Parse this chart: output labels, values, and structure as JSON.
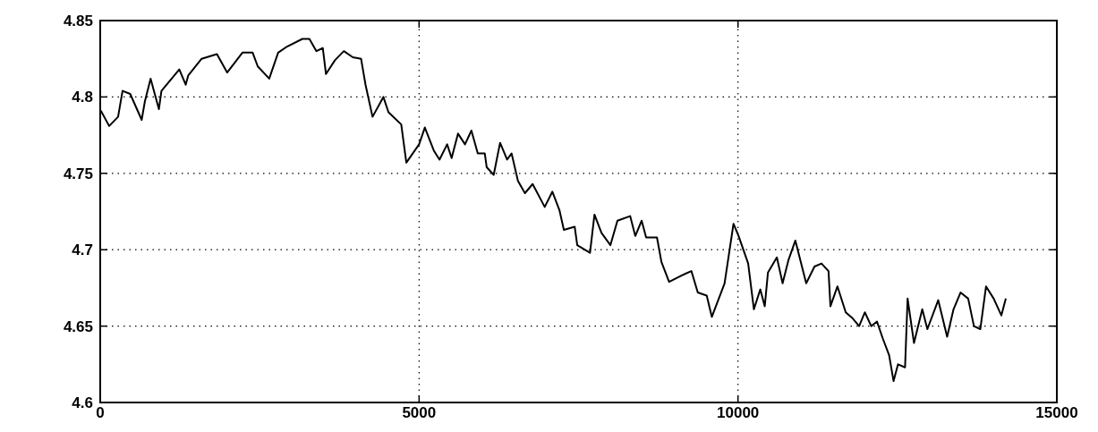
{
  "chart_data": {
    "type": "line",
    "xlim": [
      0,
      15000
    ],
    "ylim": [
      4.6,
      4.85
    ],
    "xticks": [
      0,
      5000,
      10000,
      15000
    ],
    "yticks": [
      4.6,
      4.65,
      4.7,
      4.75,
      4.8,
      4.85
    ],
    "grid": true,
    "line_style": "solid",
    "series": [
      {
        "color": "#000000",
        "x": [
          10,
          140,
          280,
          350,
          470,
          650,
          700,
          790,
          920,
          960,
          1240,
          1340,
          1380,
          1590,
          1830,
          1990,
          2230,
          2390,
          2470,
          2650,
          2790,
          2930,
          3170,
          3280,
          3390,
          3490,
          3540,
          3680,
          3820,
          3960,
          4090,
          4160,
          4270,
          4440,
          4520,
          4720,
          4800,
          5000,
          5090,
          5230,
          5320,
          5440,
          5510,
          5610,
          5720,
          5820,
          5920,
          6030,
          6060,
          6170,
          6270,
          6380,
          6450,
          6550,
          6660,
          6780,
          6970,
          7090,
          7200,
          7270,
          7440,
          7480,
          7680,
          7750,
          7860,
          8000,
          8110,
          8310,
          8390,
          8490,
          8560,
          8730,
          8800,
          8920,
          9160,
          9270,
          9370,
          9510,
          9590,
          9790,
          9930,
          10010,
          10160,
          10250,
          10350,
          10420,
          10470,
          10610,
          10700,
          10790,
          10900,
          11070,
          11200,
          11310,
          11420,
          11450,
          11560,
          11690,
          11800,
          11900,
          11990,
          12090,
          12180,
          12270,
          12370,
          12440,
          12510,
          12620,
          12660,
          12760,
          12890,
          12970,
          13140,
          13280,
          13380,
          13490,
          13610,
          13700,
          13800,
          13890,
          14010,
          14130,
          14200
        ],
        "values": [
          4.791,
          4.781,
          4.787,
          4.804,
          4.802,
          4.785,
          4.797,
          4.812,
          4.792,
          4.804,
          4.818,
          4.808,
          4.814,
          4.825,
          4.828,
          4.816,
          4.829,
          4.829,
          4.82,
          4.812,
          4.829,
          4.833,
          4.838,
          4.838,
          4.83,
          4.832,
          4.815,
          4.824,
          4.83,
          4.826,
          4.825,
          4.808,
          4.787,
          4.8,
          4.79,
          4.782,
          4.757,
          4.769,
          4.78,
          4.765,
          4.759,
          4.769,
          4.76,
          4.776,
          4.769,
          4.778,
          4.763,
          4.763,
          4.754,
          4.749,
          4.77,
          4.759,
          4.763,
          4.745,
          4.737,
          4.743,
          4.728,
          4.738,
          4.726,
          4.713,
          4.715,
          4.703,
          4.698,
          4.723,
          4.711,
          4.703,
          4.719,
          4.722,
          4.709,
          4.719,
          4.708,
          4.708,
          4.692,
          4.679,
          4.684,
          4.686,
          4.672,
          4.67,
          4.656,
          4.678,
          4.717,
          4.709,
          4.691,
          4.661,
          4.674,
          4.663,
          4.685,
          4.695,
          4.678,
          4.693,
          4.706,
          4.678,
          4.689,
          4.691,
          4.686,
          4.663,
          4.676,
          4.659,
          4.655,
          4.65,
          4.659,
          4.65,
          4.653,
          4.642,
          4.631,
          4.614,
          4.625,
          4.623,
          4.668,
          4.639,
          4.661,
          4.648,
          4.667,
          4.643,
          4.661,
          4.672,
          4.668,
          4.65,
          4.648,
          4.676,
          4.668,
          4.657,
          4.668
        ]
      }
    ]
  }
}
